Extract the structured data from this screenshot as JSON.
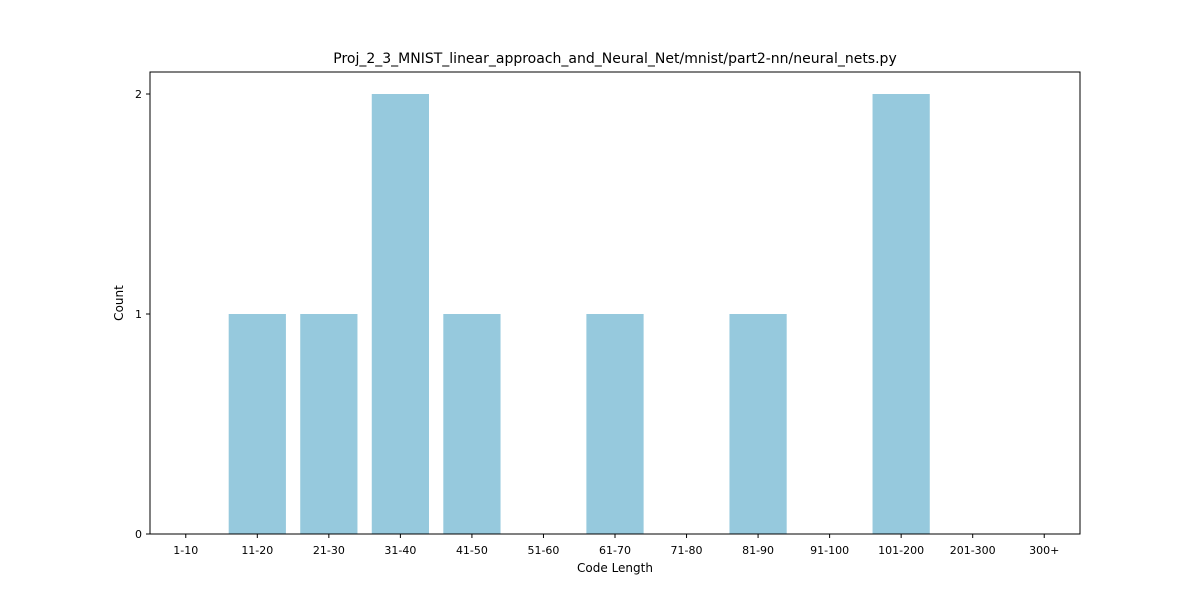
{
  "chart_data": {
    "type": "bar",
    "title": "Proj_2_3_MNIST_linear_approach_and_Neural_Net/mnist/part2-nn/neural_nets.py",
    "xlabel": "Code Length",
    "ylabel": "Count",
    "categories": [
      "1-10",
      "11-20",
      "21-30",
      "31-40",
      "41-50",
      "51-60",
      "61-70",
      "71-80",
      "81-90",
      "91-100",
      "101-200",
      "201-300",
      "300+"
    ],
    "values": [
      0,
      1,
      1,
      2,
      1,
      0,
      1,
      0,
      1,
      0,
      2,
      0,
      0
    ],
    "ylim": [
      0,
      2.1
    ],
    "yticks": [
      0,
      1,
      2
    ],
    "grid": false,
    "bar_color": "#96c9dd"
  }
}
